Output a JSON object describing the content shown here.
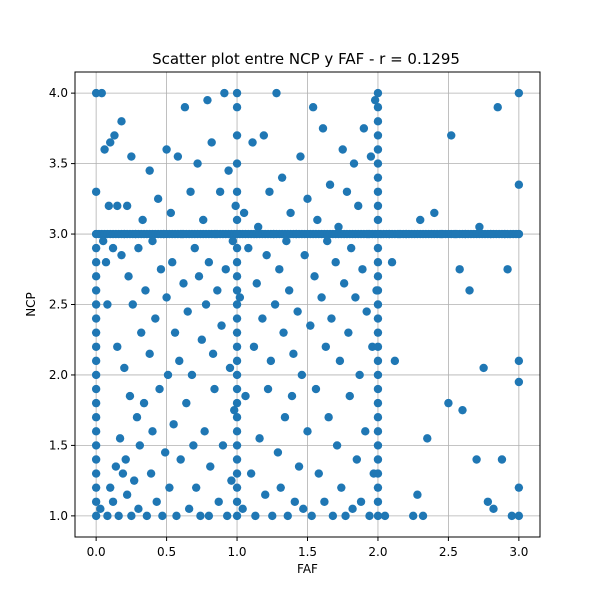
{
  "chart_data": {
    "type": "scatter",
    "title": "Scatter plot entre NCP y FAF - r = 0.1295",
    "xlabel": "FAF",
    "ylabel": "NCP",
    "xlim": [
      -0.15,
      3.15
    ],
    "ylim": [
      0.85,
      4.15
    ],
    "xticks": [
      0.0,
      0.5,
      1.0,
      1.5,
      2.0,
      2.5,
      3.0
    ],
    "xtick_labels": [
      "0.0",
      "0.5",
      "1.0",
      "1.5",
      "2.0",
      "2.5",
      "3.0"
    ],
    "yticks": [
      1.0,
      1.5,
      2.0,
      2.5,
      3.0,
      3.5,
      4.0
    ],
    "ytick_labels": [
      "1.0",
      "1.5",
      "2.0",
      "2.5",
      "3.0",
      "3.5",
      "4.0"
    ],
    "grid": true,
    "marker_color": "#1f77b4",
    "series": [
      {
        "points": [
          [
            0,
            1
          ],
          [
            0,
            1.1
          ],
          [
            0,
            1.2
          ],
          [
            0,
            1.3
          ],
          [
            0,
            1.4
          ],
          [
            0,
            1.5
          ],
          [
            0,
            1.6
          ],
          [
            0,
            1.7
          ],
          [
            0,
            1.8
          ],
          [
            0,
            1.9
          ],
          [
            0,
            2
          ],
          [
            0,
            2.1
          ],
          [
            0,
            2.2
          ],
          [
            0,
            2.3
          ],
          [
            0,
            2.4
          ],
          [
            0,
            2.5
          ],
          [
            0,
            2.6
          ],
          [
            0,
            2.7
          ],
          [
            0,
            2.8
          ],
          [
            0,
            2.9
          ],
          [
            0,
            3
          ],
          [
            0,
            3.3
          ],
          [
            0,
            4
          ],
          [
            0.03,
            1.05
          ],
          [
            0.04,
            4
          ],
          [
            0.05,
            2.95
          ],
          [
            0.06,
            3.6
          ],
          [
            0.07,
            2.8
          ],
          [
            0.08,
            1.0
          ],
          [
            0.08,
            2.5
          ],
          [
            0.09,
            3.2
          ],
          [
            0.1,
            1.2
          ],
          [
            0.1,
            3.65
          ],
          [
            0.12,
            1.1
          ],
          [
            0.12,
            2.9
          ],
          [
            0.13,
            3.7
          ],
          [
            0.14,
            1.35
          ],
          [
            0.15,
            3.2
          ],
          [
            0.15,
            2.2
          ],
          [
            0.16,
            1.0
          ],
          [
            0.17,
            1.55
          ],
          [
            0.18,
            3.8
          ],
          [
            0.18,
            2.85
          ],
          [
            0.19,
            1.3
          ],
          [
            0.2,
            3.0
          ],
          [
            0.2,
            2.05
          ],
          [
            0.21,
            1.4
          ],
          [
            0.22,
            1.15
          ],
          [
            0.22,
            3.2
          ],
          [
            0.23,
            2.7
          ],
          [
            0.24,
            1.85
          ],
          [
            0.25,
            3.55
          ],
          [
            0.25,
            1.0
          ],
          [
            0.26,
            2.5
          ],
          [
            0.27,
            1.25
          ],
          [
            0.28,
            3.0
          ],
          [
            0.29,
            1.7
          ],
          [
            0.3,
            2.9
          ],
          [
            0.3,
            1.05
          ],
          [
            0.31,
            1.5
          ],
          [
            0.32,
            2.3
          ],
          [
            0.33,
            3.1
          ],
          [
            0.34,
            1.8
          ],
          [
            0.35,
            2.6
          ],
          [
            0.36,
            1.0
          ],
          [
            0.38,
            3.45
          ],
          [
            0.38,
            2.15
          ],
          [
            0.39,
            1.3
          ],
          [
            0.4,
            2.95
          ],
          [
            0.4,
            1.6
          ],
          [
            0.42,
            2.4
          ],
          [
            0.43,
            1.1
          ],
          [
            0.44,
            3.25
          ],
          [
            0.45,
            1.9
          ],
          [
            0.46,
            2.75
          ],
          [
            0.47,
            1.0
          ],
          [
            0.48,
            3.0
          ],
          [
            0.49,
            1.45
          ],
          [
            0.5,
            3.6
          ],
          [
            0.5,
            2.55
          ],
          [
            0.51,
            2.0
          ],
          [
            0.52,
            1.2
          ],
          [
            0.53,
            3.15
          ],
          [
            0.54,
            2.8
          ],
          [
            0.55,
            1.65
          ],
          [
            0.56,
            2.3
          ],
          [
            0.57,
            1.0
          ],
          [
            0.58,
            3.55
          ],
          [
            0.59,
            2.1
          ],
          [
            0.6,
            1.4
          ],
          [
            0.61,
            3.0
          ],
          [
            0.62,
            2.65
          ],
          [
            0.63,
            3.9
          ],
          [
            0.64,
            1.8
          ],
          [
            0.65,
            2.45
          ],
          [
            0.66,
            1.05
          ],
          [
            0.67,
            3.3
          ],
          [
            0.68,
            2.0
          ],
          [
            0.69,
            1.5
          ],
          [
            0.7,
            2.9
          ],
          [
            0.71,
            1.2
          ],
          [
            0.72,
            3.5
          ],
          [
            0.73,
            2.7
          ],
          [
            0.74,
            1.0
          ],
          [
            0.75,
            2.25
          ],
          [
            0.76,
            3.1
          ],
          [
            0.77,
            1.6
          ],
          [
            0.78,
            2.5
          ],
          [
            0.79,
            3.95
          ],
          [
            0.8,
            1.0
          ],
          [
            0.8,
            2.8
          ],
          [
            0.81,
            1.35
          ],
          [
            0.82,
            3.65
          ],
          [
            0.83,
            2.15
          ],
          [
            0.84,
            1.9
          ],
          [
            0.85,
            3.0
          ],
          [
            0.86,
            2.6
          ],
          [
            0.87,
            1.1
          ],
          [
            0.88,
            3.3
          ],
          [
            0.89,
            2.35
          ],
          [
            0.9,
            1.5
          ],
          [
            0.91,
            4.0
          ],
          [
            0.92,
            2.75
          ],
          [
            0.93,
            1.0
          ],
          [
            0.94,
            3.45
          ],
          [
            0.95,
            2.05
          ],
          [
            0.96,
            1.25
          ],
          [
            0.97,
            2.95
          ],
          [
            0.98,
            1.75
          ],
          [
            0.99,
            3.2
          ],
          [
            1,
            1
          ],
          [
            1,
            1.1
          ],
          [
            1,
            1.2
          ],
          [
            1,
            1.3
          ],
          [
            1,
            1.4
          ],
          [
            1,
            1.5
          ],
          [
            1,
            1.6
          ],
          [
            1,
            1.7
          ],
          [
            1,
            1.8
          ],
          [
            1,
            1.9
          ],
          [
            1,
            2
          ],
          [
            1,
            2.1
          ],
          [
            1,
            2.2
          ],
          [
            1,
            2.3
          ],
          [
            1,
            2.4
          ],
          [
            1,
            2.5
          ],
          [
            1,
            2.6
          ],
          [
            1,
            2.7
          ],
          [
            1,
            2.8
          ],
          [
            1,
            2.9
          ],
          [
            1,
            3
          ],
          [
            1,
            3.1
          ],
          [
            1,
            3.3
          ],
          [
            1,
            3.5
          ],
          [
            1,
            3.7
          ],
          [
            1,
            3.9
          ],
          [
            1,
            4
          ],
          [
            1.02,
            2.55
          ],
          [
            1.04,
            1.05
          ],
          [
            1.05,
            3.15
          ],
          [
            1.06,
            1.85
          ],
          [
            1.08,
            2.9
          ],
          [
            1.1,
            1.3
          ],
          [
            1.11,
            3.65
          ],
          [
            1.12,
            2.2
          ],
          [
            1.13,
            1.0
          ],
          [
            1.14,
            2.65
          ],
          [
            1.15,
            3.05
          ],
          [
            1.16,
            1.55
          ],
          [
            1.18,
            2.4
          ],
          [
            1.19,
            3.7
          ],
          [
            1.2,
            1.15
          ],
          [
            1.21,
            2.85
          ],
          [
            1.22,
            1.9
          ],
          [
            1.23,
            3.3
          ],
          [
            1.24,
            2.1
          ],
          [
            1.25,
            1.0
          ],
          [
            1.26,
            3.0
          ],
          [
            1.27,
            2.5
          ],
          [
            1.28,
            4.0
          ],
          [
            1.29,
            1.45
          ],
          [
            1.3,
            2.75
          ],
          [
            1.31,
            1.2
          ],
          [
            1.32,
            3.4
          ],
          [
            1.33,
            2.3
          ],
          [
            1.34,
            1.7
          ],
          [
            1.35,
            2.95
          ],
          [
            1.36,
            1.0
          ],
          [
            1.37,
            2.6
          ],
          [
            1.38,
            3.15
          ],
          [
            1.39,
            1.85
          ],
          [
            1.4,
            2.15
          ],
          [
            1.41,
            1.1
          ],
          [
            1.42,
            3.0
          ],
          [
            1.43,
            2.45
          ],
          [
            1.44,
            1.35
          ],
          [
            1.45,
            3.55
          ],
          [
            1.46,
            2.0
          ],
          [
            1.47,
            1.05
          ],
          [
            1.48,
            2.85
          ],
          [
            1.5,
            3.25
          ],
          [
            1.5,
            1.6
          ],
          [
            1.52,
            2.35
          ],
          [
            1.53,
            1.0
          ],
          [
            1.54,
            3.9
          ],
          [
            1.55,
            2.7
          ],
          [
            1.56,
            1.9
          ],
          [
            1.57,
            3.1
          ],
          [
            1.58,
            1.3
          ],
          [
            1.6,
            2.55
          ],
          [
            1.61,
            3.75
          ],
          [
            1.62,
            1.1
          ],
          [
            1.63,
            2.2
          ],
          [
            1.64,
            2.95
          ],
          [
            1.65,
            1.7
          ],
          [
            1.66,
            3.35
          ],
          [
            1.67,
            2.4
          ],
          [
            1.68,
            1.0
          ],
          [
            1.7,
            2.8
          ],
          [
            1.71,
            1.5
          ],
          [
            1.72,
            3.05
          ],
          [
            1.73,
            2.1
          ],
          [
            1.74,
            1.2
          ],
          [
            1.75,
            3.6
          ],
          [
            1.76,
            2.65
          ],
          [
            1.77,
            1.0
          ],
          [
            1.78,
            3.3
          ],
          [
            1.79,
            2.3
          ],
          [
            1.8,
            1.85
          ],
          [
            1.81,
            2.9
          ],
          [
            1.82,
            1.05
          ],
          [
            1.83,
            3.5
          ],
          [
            1.84,
            2.55
          ],
          [
            1.85,
            1.4
          ],
          [
            1.86,
            3.2
          ],
          [
            1.87,
            2.0
          ],
          [
            1.88,
            1.1
          ],
          [
            1.89,
            2.75
          ],
          [
            1.9,
            3.75
          ],
          [
            1.91,
            1.6
          ],
          [
            1.92,
            2.45
          ],
          [
            1.93,
            3.0
          ],
          [
            1.94,
            1.0
          ],
          [
            1.95,
            3.55
          ],
          [
            1.96,
            2.2
          ],
          [
            1.97,
            1.3
          ],
          [
            1.98,
            3.95
          ],
          [
            1.99,
            2.6
          ],
          [
            2,
            1
          ],
          [
            2,
            1.1
          ],
          [
            2,
            1.2
          ],
          [
            2,
            1.3
          ],
          [
            2,
            1.4
          ],
          [
            2,
            1.5
          ],
          [
            2,
            1.6
          ],
          [
            2,
            1.7
          ],
          [
            2,
            1.8
          ],
          [
            2,
            1.9
          ],
          [
            2,
            2
          ],
          [
            2,
            2.1
          ],
          [
            2,
            2.2
          ],
          [
            2,
            2.3
          ],
          [
            2,
            2.4
          ],
          [
            2,
            2.5
          ],
          [
            2,
            2.6
          ],
          [
            2,
            2.7
          ],
          [
            2,
            2.8
          ],
          [
            2,
            2.9
          ],
          [
            2,
            3
          ],
          [
            2,
            3.1
          ],
          [
            2,
            3.2
          ],
          [
            2,
            3.3
          ],
          [
            2,
            3.4
          ],
          [
            2,
            3.5
          ],
          [
            2,
            3.6
          ],
          [
            2,
            3.7
          ],
          [
            2,
            3.8
          ],
          [
            2,
            3.9
          ],
          [
            2,
            4
          ],
          [
            2.05,
            1.0
          ],
          [
            2.08,
            3.0
          ],
          [
            2.1,
            2.8
          ],
          [
            2.12,
            2.1
          ],
          [
            2.15,
            3.0
          ],
          [
            2.2,
            3.0
          ],
          [
            2.25,
            1.0
          ],
          [
            2.28,
            1.15
          ],
          [
            2.3,
            3.1
          ],
          [
            2.32,
            1.0
          ],
          [
            2.35,
            1.55
          ],
          [
            2.4,
            3.15
          ],
          [
            2.45,
            3.0
          ],
          [
            2.5,
            1.8
          ],
          [
            2.52,
            3.7
          ],
          [
            2.55,
            3.0
          ],
          [
            2.58,
            2.75
          ],
          [
            2.6,
            1.75
          ],
          [
            2.62,
            3.0
          ],
          [
            2.65,
            2.6
          ],
          [
            2.7,
            1.4
          ],
          [
            2.72,
            3.05
          ],
          [
            2.75,
            2.05
          ],
          [
            2.78,
            1.1
          ],
          [
            2.8,
            3.0
          ],
          [
            2.82,
            1.05
          ],
          [
            2.85,
            3.9
          ],
          [
            2.88,
            1.4
          ],
          [
            2.9,
            3.0
          ],
          [
            2.92,
            2.75
          ],
          [
            2.95,
            1.0
          ],
          [
            3,
            1
          ],
          [
            3,
            1.2
          ],
          [
            3,
            1.95
          ],
          [
            3,
            2.1
          ],
          [
            3,
            3
          ],
          [
            3,
            3.35
          ],
          [
            3,
            4
          ]
        ]
      }
    ]
  }
}
